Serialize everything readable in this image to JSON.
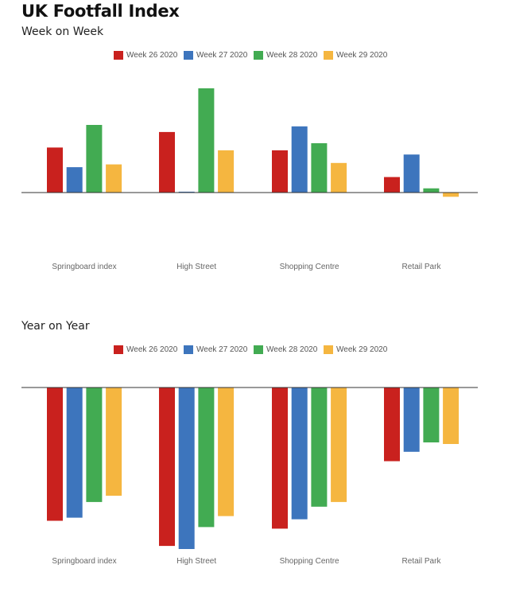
{
  "page": {
    "title": "UK Footfall Index"
  },
  "chart_data": [
    {
      "type": "bar",
      "title": "Week on Week",
      "categories": [
        "Springboard index",
        "High Street",
        "Shopping Centre",
        "Retail Park"
      ],
      "series": [
        {
          "name": "Week 26 2020",
          "color": "#c9211e",
          "values": [
            16,
            21.5,
            15,
            5.5
          ]
        },
        {
          "name": "Week 27 2020",
          "color": "#3d75bd",
          "values": [
            9,
            0.3,
            23.5,
            13.5
          ]
        },
        {
          "name": "Week 28 2020",
          "color": "#42ab52",
          "values": [
            24,
            37,
            17.5,
            1.5
          ]
        },
        {
          "name": "Week 29 2020",
          "color": "#f5b640",
          "values": [
            10,
            15,
            10.5,
            -1.5
          ]
        }
      ],
      "ylim": [
        -30,
        40
      ],
      "grid": false,
      "legend": "top-center"
    },
    {
      "type": "bar",
      "title": "Year on Year",
      "categories": [
        "Springboard index",
        "High Street",
        "Shopping Centre",
        "Retail Park"
      ],
      "series": [
        {
          "name": "Week 26 2020",
          "color": "#c9211e",
          "values": [
            -42.5,
            -50.5,
            -45,
            -23.5
          ]
        },
        {
          "name": "Week 27 2020",
          "color": "#3d75bd",
          "values": [
            -41.5,
            -51.5,
            -42,
            -20.5
          ]
        },
        {
          "name": "Week 28 2020",
          "color": "#42ab52",
          "values": [
            -36.5,
            -44.5,
            -38,
            -17.5
          ]
        },
        {
          "name": "Week 29 2020",
          "color": "#f5b640",
          "values": [
            -34.5,
            -41,
            -36.5,
            -18
          ]
        }
      ],
      "ylim": [
        -55,
        0
      ],
      "grid": false,
      "legend": "top-center"
    }
  ]
}
